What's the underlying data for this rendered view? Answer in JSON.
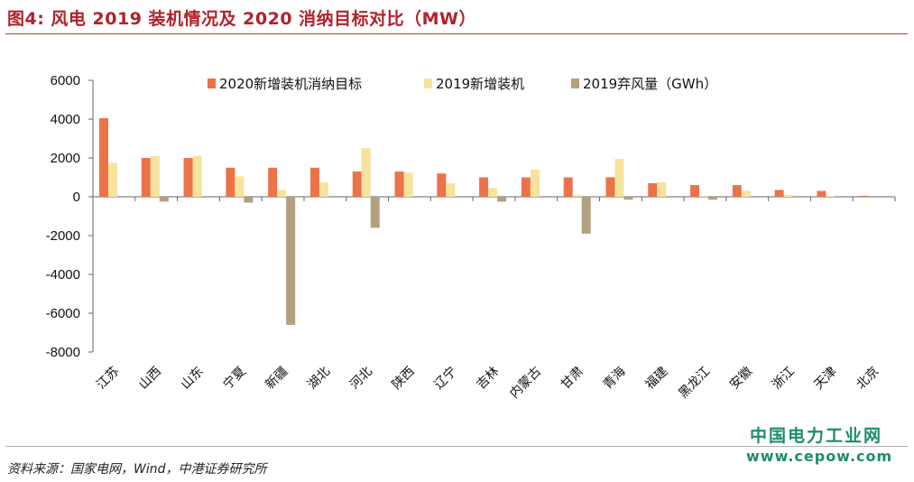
{
  "title": "图4: 风电 2019 装机情况及 2020 消纳目标对比（MW）",
  "source": "资料来源：国家电网，Wind，中港证券研究所",
  "watermark": {
    "name": "中国电力工业网",
    "url": "www.cepow.com"
  },
  "chart_data": {
    "type": "bar",
    "categories": [
      "江苏",
      "山西",
      "山东",
      "宁夏",
      "新疆",
      "湖北",
      "河北",
      "陕西",
      "辽宁",
      "吉林",
      "内蒙古",
      "甘肃",
      "青海",
      "福建",
      "黑龙江",
      "安徽",
      "浙江",
      "天津",
      "北京"
    ],
    "series": [
      {
        "name": "2020新增装机消纳目标",
        "color": "#ec7249",
        "values": [
          4050,
          2000,
          2000,
          1500,
          1500,
          1500,
          1300,
          1300,
          1200,
          1000,
          1000,
          1000,
          1000,
          700,
          600,
          600,
          350,
          300,
          50
        ]
      },
      {
        "name": "2019新增装机",
        "color": "#f7e29e",
        "values": [
          1750,
          2100,
          2100,
          1050,
          350,
          750,
          2500,
          1250,
          700,
          450,
          1400,
          100,
          1950,
          750,
          50,
          300,
          100,
          50,
          0
        ]
      },
      {
        "name": "2019弃风量（GWh）",
        "color": "#b2a07e",
        "values": [
          0,
          -250,
          0,
          -300,
          -6600,
          0,
          -1600,
          0,
          0,
          -250,
          0,
          -1900,
          -150,
          0,
          -150,
          0,
          0,
          0,
          0
        ]
      }
    ],
    "ylim": [
      -8000,
      6000
    ],
    "yticks": [
      -8000,
      -6000,
      -4000,
      -2000,
      0,
      2000,
      4000,
      6000
    ],
    "legend_position": "top"
  }
}
